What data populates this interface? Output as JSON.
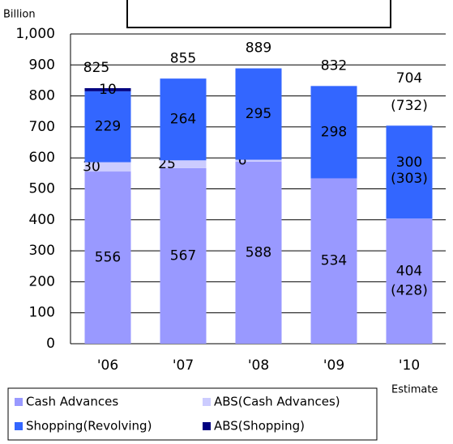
{
  "chart_data": {
    "type": "stacked_bar",
    "y_label": "Billion",
    "note": "Estimate",
    "categories": [
      "'06",
      "'07",
      "'08",
      "'09",
      "'10"
    ],
    "series": [
      {
        "name": "Cash Advances",
        "color": "#9999ff",
        "values": [
          556,
          567,
          588,
          534,
          404
        ]
      },
      {
        "name": "ABS(Cash Advances)",
        "color": "#ccccff",
        "values": [
          30,
          25,
          6,
          null,
          null
        ]
      },
      {
        "name": "Shopping(Revolving)",
        "color": "#3366ff",
        "values": [
          229,
          264,
          295,
          298,
          300
        ]
      },
      {
        "name": "ABS(Shopping)",
        "color": "#000080",
        "values": [
          10,
          null,
          null,
          null,
          null
        ]
      }
    ],
    "totals": [
      825,
      855,
      889,
      832,
      704
    ],
    "annotations": [
      "(732)",
      "(303)",
      "(428)"
    ],
    "ylim": [
      0,
      1000
    ],
    "yticks": [
      0,
      100,
      200,
      300,
      400,
      500,
      600,
      700,
      800,
      900,
      {
        "value": 1000,
        "label": "1,000"
      }
    ],
    "grid": true
  }
}
